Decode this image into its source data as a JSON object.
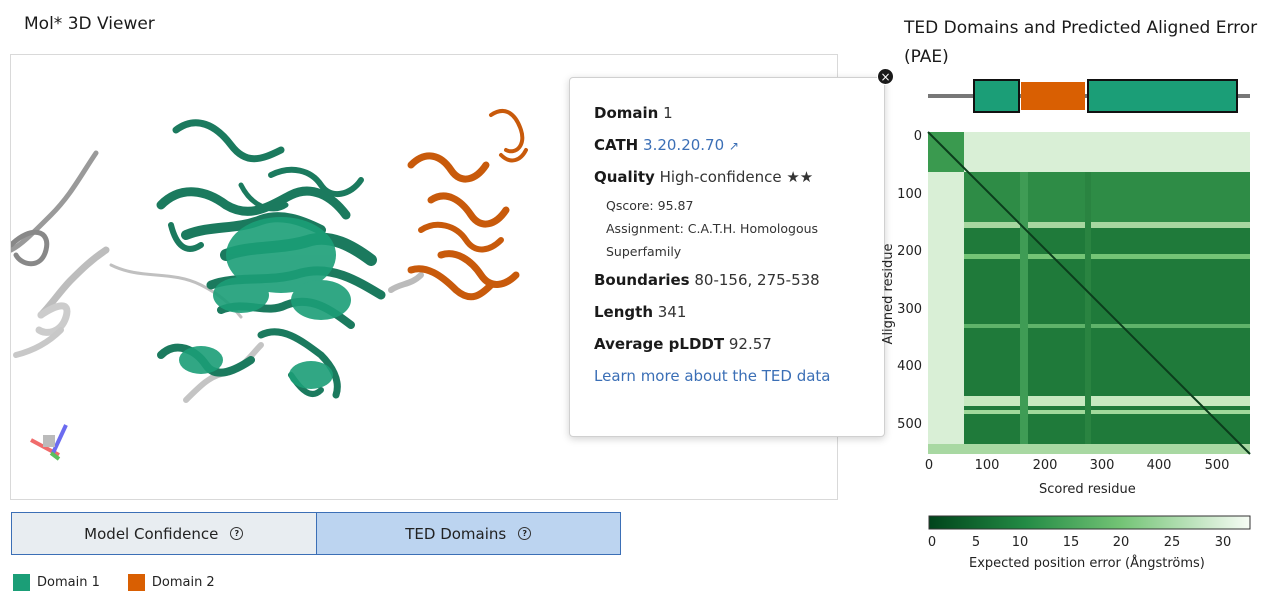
{
  "viewer": {
    "title": "Mol* 3D Viewer",
    "expand_icon": "expand-icon"
  },
  "popup": {
    "domain_label": "Domain",
    "domain_value": "1",
    "cath_label": "CATH",
    "cath_value": "3.20.20.70",
    "quality_label": "Quality",
    "quality_value": "High-confidence ★★",
    "qscore": "Qscore: 95.87",
    "assignment_line1": "Assignment: C.A.T.H. Homologous",
    "assignment_line2": "Superfamily",
    "boundaries_label": "Boundaries",
    "boundaries_value": "80-156, 275-538",
    "length_label": "Length",
    "length_value": "341",
    "plddt_label": "Average pLDDT",
    "plddt_value": "92.57",
    "learn_more": "Learn more about the TED data",
    "close": "×"
  },
  "tabs": [
    {
      "label": "Model Confidence",
      "active": false
    },
    {
      "label": "TED Domains",
      "active": true
    }
  ],
  "legend": [
    {
      "label": "Domain 1",
      "color": "#1b9e77"
    },
    {
      "label": "Domain 2",
      "color": "#d95f02"
    }
  ],
  "pae": {
    "title": "TED Domains and Predicted Aligned Error (PAE)",
    "x_label": "Scored residue",
    "y_label": "Aligned residue",
    "ticks": [
      "0",
      "100",
      "200",
      "300",
      "400",
      "500"
    ],
    "colorbar_ticks": [
      "0",
      "5",
      "10",
      "15",
      "20",
      "25",
      "30"
    ],
    "colorbar_label": "Expected position error (Ångströms)",
    "domain_colors": {
      "d1": "#1b9e77",
      "d2": "#d95f02"
    }
  }
}
